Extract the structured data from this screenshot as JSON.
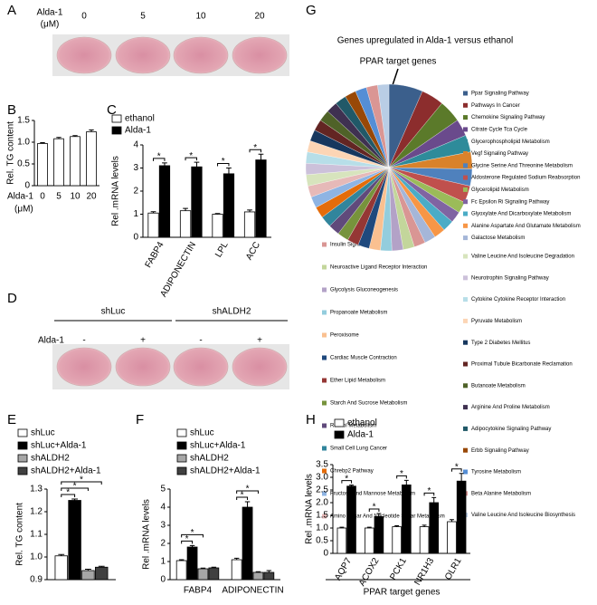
{
  "panel_A": {
    "panel": "A",
    "treatment": [
      "Alda-1",
      "(μM)"
    ],
    "doses": [
      0,
      5,
      10,
      20
    ]
  },
  "panel_D": {
    "panel": "D",
    "groups": [
      "shLuc",
      "shALDH2"
    ],
    "treatment": "Alda-1",
    "signs": [
      "-",
      "+",
      "-",
      "+"
    ]
  },
  "chart_data": [
    {
      "panel": "B",
      "type": "bar",
      "ylabel": "Rel. TG content",
      "xlabel": [
        "Alda-1",
        "(μM)"
      ],
      "categories": [
        0,
        5,
        10,
        20
      ],
      "values": [
        0.97,
        1.08,
        1.13,
        1.24
      ],
      "errors": [
        0.02,
        0.03,
        0.02,
        0.04
      ],
      "color": "#ffffff",
      "ylim": [
        0,
        1.5
      ],
      "yticks": [
        0,
        0.5,
        {
          "value": 1,
          "label": "1.0"
        },
        1.5
      ]
    },
    {
      "panel": "C",
      "type": "grouped_bar",
      "ylabel": "Rel .mRNA levels",
      "categories": [
        "FABP4",
        "ADIPONECTIN",
        "LPL",
        "ACC"
      ],
      "series": [
        {
          "name": "ethanol",
          "color": "#ffffff",
          "values": [
            1.05,
            1.15,
            1.0,
            1.1
          ],
          "errors": [
            0.06,
            0.1,
            0.03,
            0.08
          ]
        },
        {
          "name": "Alda-1",
          "color": "#000000",
          "values": [
            3.1,
            3.05,
            2.75,
            3.35
          ],
          "errors": [
            0.12,
            0.2,
            0.25,
            0.25
          ]
        }
      ],
      "significance": [
        "*",
        "*",
        "*",
        "*"
      ],
      "ylim": [
        0,
        4
      ],
      "yticks": [
        0,
        1,
        2,
        3,
        4
      ]
    },
    {
      "panel": "E",
      "type": "grouped_bar",
      "ylabel": "Rel. TG content",
      "categories": [
        null
      ],
      "series": [
        {
          "name": "shLuc",
          "color": "#ffffff",
          "values": [
            1.005
          ],
          "errors": [
            0.006
          ]
        },
        {
          "name": "shLuc+Alda-1",
          "color": "#000000",
          "values": [
            1.25
          ],
          "errors": [
            0.006
          ]
        },
        {
          "name": "shALDH2",
          "color": "#a6a6a6",
          "values": [
            0.94
          ],
          "errors": [
            0.006
          ]
        },
        {
          "name": "shALDH2+Alda-1",
          "color": "#404040",
          "values": [
            0.955
          ],
          "errors": [
            0.004
          ]
        }
      ],
      "significance": [
        "*",
        "*",
        "*"
      ],
      "ylim": [
        0.9,
        1.3
      ],
      "yticks": [
        0.9,
        {
          "value": 1,
          "label": "1.0"
        },
        1.1,
        1.2,
        1.3
      ]
    },
    {
      "panel": "F",
      "type": "grouped_bar",
      "ylabel": "Rel .mRNA levels",
      "categories": [
        "FABP4",
        "ADIPONECTIN"
      ],
      "series": [
        {
          "name": "shLuc",
          "color": "#ffffff",
          "values": [
            1.05,
            1.1
          ],
          "errors": [
            0.05,
            0.08
          ]
        },
        {
          "name": "shLuc+Alda-1",
          "color": "#000000",
          "values": [
            1.8,
            4.0
          ],
          "errors": [
            0.08,
            0.3
          ]
        },
        {
          "name": "shALDH2",
          "color": "#a6a6a6",
          "values": [
            0.6,
            0.4
          ],
          "errors": [
            0.04,
            0.04
          ]
        },
        {
          "name": "shALDH2+Alda-1",
          "color": "#404040",
          "values": [
            0.65,
            0.4
          ],
          "errors": [
            0.04,
            0.1
          ]
        }
      ],
      "significance": [
        "*",
        "*",
        "*",
        "*"
      ],
      "ylim": [
        0,
        5
      ],
      "yticks": [
        0,
        1,
        2,
        3,
        4,
        5
      ]
    },
    {
      "panel": "G",
      "type": "pie",
      "title": "Genes upregulated in Alda-1 versus ethanol",
      "annotation": "PPAR target genes",
      "categories": [
        "Ppar Signaling Pathway",
        "Pathways In Cancer",
        "Chemokine Signaling Pathway",
        "Citrate Cycle Tca Cycle",
        "Glycerophospholipid Metabolism",
        "Vegf Signaling Pathway",
        "Glycine Serine And Threonine Metabolism",
        "Aldosterone Regulated Sodium Reabsorption",
        "Glycerolipid Metabolism",
        "Fc Epsilon Ri Signaling Pathway",
        "Glyoxylate And Dicarboxylate Metabolism",
        "Alanine Aspartate And Glutamate Metabolism",
        "Galactose Metabolism",
        "Insulin Signaling Pathway",
        "Neuroactive Ligand Receptor Interaction",
        "Glycolysis Gluconeogenesis",
        "Propanoate Metabolism",
        "Peroxisome",
        "Cardiac Muscle Contraction",
        "Ether Lipid Metabolism",
        "Starch And Sucrose Metabolism",
        "Retinol Metabolism",
        "Small Cell Lung Cancer",
        "Chrebp2 Pathway",
        "Fructose And Mannose Metabolism",
        "Amino Sugar And Nucleotide Sugar Metabolism",
        "Valine Leucine And Isoleucine Degradation",
        "Neurotrophin Signaling Pathway",
        "Cytokine Cytokine Receptor Interaction",
        "Pyruvate Metabolism",
        "Type 2 Diabetes Mellitus",
        "Proximal Tubule Bicarbonate Reclamation",
        "Butanoate Metabolism",
        "Arginine And Proline Metabolism",
        "Adipocytokine Signaling Pathway",
        "Erbb Signaling Pathway",
        "Tyrosine Metabolism",
        "Beta Alanine Metabolism",
        "Valine Leucine And Isoleucine Biosynthesis"
      ],
      "values": [
        3,
        2,
        2,
        1.5,
        1.5,
        1.5,
        1.5,
        1.5,
        1,
        1,
        1,
        1,
        1,
        1,
        1,
        1,
        1,
        1,
        1,
        1,
        1,
        1,
        1,
        1,
        1,
        1,
        1,
        1,
        1,
        1,
        1,
        1,
        1,
        1,
        1,
        1,
        1,
        1,
        1
      ],
      "colors": [
        "#3b5f8c",
        "#8c2d2d",
        "#5b7a2a",
        "#6a4a8c",
        "#2e8b9a",
        "#d9822b",
        "#4f81bd",
        "#c0504d",
        "#9bbb59",
        "#8064a2",
        "#4bacc6",
        "#f79646",
        "#a5b6d8",
        "#d99694",
        "#c3d69b",
        "#b3a2c7",
        "#93cddd",
        "#fac090",
        "#1f497d",
        "#953735",
        "#77933c",
        "#604a7b",
        "#31859c",
        "#e46c0a",
        "#8eb4e3",
        "#e6b9b8",
        "#d7e4bd",
        "#ccc1da",
        "#b7dee8",
        "#fcd5b5",
        "#17375e",
        "#632523",
        "#4f6228",
        "#3f3151",
        "#215968",
        "#984807",
        "#558ed5",
        "#da9694",
        "#b9cde5"
      ]
    },
    {
      "panel": "H",
      "type": "grouped_bar",
      "ylabel": "Rel .mRNA levels",
      "group_label": "PPAR target genes",
      "categories": [
        "AQP7",
        "ACOX2",
        "PCK1",
        "NR1H3",
        "OLR1"
      ],
      "series": [
        {
          "name": "ethanol",
          "color": "#ffffff",
          "values": [
            1.0,
            1.0,
            1.05,
            1.05,
            1.25
          ],
          "errors": [
            0.03,
            0.03,
            0.04,
            0.06,
            0.08
          ]
        },
        {
          "name": "Alda-1",
          "color": "#000000",
          "values": [
            2.65,
            1.45,
            2.7,
            2.0,
            2.85
          ],
          "errors": [
            0.04,
            0.12,
            0.18,
            0.2,
            0.3
          ]
        }
      ],
      "significance": [
        "*",
        "*",
        "*",
        "*",
        "*"
      ],
      "ylim": [
        0,
        3.5
      ],
      "yticks": [
        0,
        0.5,
        {
          "value": 1,
          "label": "1.0"
        },
        1.5,
        {
          "value": 2,
          "label": "2.0"
        },
        2.5,
        {
          "value": 3,
          "label": "3.0"
        },
        3.5
      ]
    }
  ]
}
